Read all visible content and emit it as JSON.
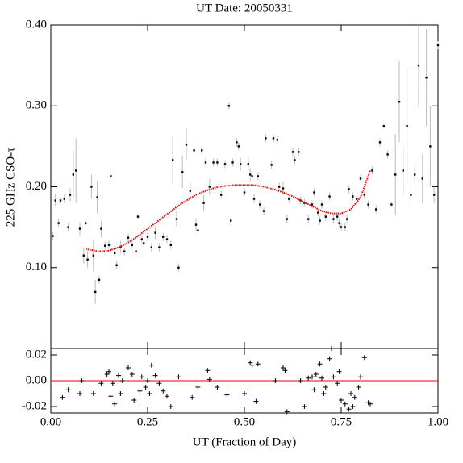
{
  "chart_data": [
    {
      "type": "scatter",
      "title": "UT Date: 20050331",
      "ylabel": "225 GHz CSO-τ",
      "xlim": [
        0,
        1
      ],
      "xticks": [
        0,
        0.25,
        0.5,
        0.75,
        1
      ],
      "ylim": [
        0,
        0.4
      ],
      "yticks": [
        {
          "value": 0.1,
          "label": "0.10"
        },
        {
          "value": 0.2,
          "label": "0.20"
        },
        {
          "value": 0.3,
          "label": "0.30"
        },
        {
          "value": 0.4,
          "label": "0.40"
        }
      ],
      "color": "#000000",
      "error_color": "#bbbbbb",
      "x": [
        0.005,
        0.012,
        0.02,
        0.025,
        0.035,
        0.045,
        0.05,
        0.058,
        0.065,
        0.075,
        0.085,
        0.09,
        0.095,
        0.105,
        0.11,
        0.115,
        0.12,
        0.125,
        0.13,
        0.14,
        0.15,
        0.155,
        0.165,
        0.17,
        0.18,
        0.19,
        0.2,
        0.21,
        0.22,
        0.225,
        0.235,
        0.24,
        0.25,
        0.26,
        0.27,
        0.28,
        0.29,
        0.3,
        0.31,
        0.315,
        0.325,
        0.33,
        0.34,
        0.35,
        0.36,
        0.37,
        0.375,
        0.38,
        0.39,
        0.395,
        0.4,
        0.41,
        0.42,
        0.43,
        0.44,
        0.45,
        0.46,
        0.465,
        0.47,
        0.48,
        0.485,
        0.49,
        0.5,
        0.51,
        0.515,
        0.52,
        0.525,
        0.535,
        0.54,
        0.55,
        0.555,
        0.57,
        0.575,
        0.585,
        0.59,
        0.6,
        0.61,
        0.615,
        0.625,
        0.63,
        0.64,
        0.645,
        0.655,
        0.665,
        0.675,
        0.68,
        0.69,
        0.695,
        0.7,
        0.71,
        0.72,
        0.73,
        0.74,
        0.745,
        0.75,
        0.76,
        0.765,
        0.77,
        0.78,
        0.79,
        0.8,
        0.81,
        0.82,
        0.83,
        0.84,
        0.85,
        0.86,
        0.87,
        0.88,
        0.89,
        0.9,
        0.91,
        0.92,
        0.93,
        0.94,
        0.95,
        0.96,
        0.97,
        0.98,
        0.99,
        1.0
      ],
      "values": [
        0.139,
        0.183,
        0.155,
        0.183,
        0.185,
        0.15,
        0.19,
        0.215,
        0.22,
        0.148,
        0.115,
        0.155,
        0.11,
        0.2,
        0.115,
        0.07,
        0.187,
        0.085,
        0.148,
        0.127,
        0.128,
        0.213,
        0.118,
        0.103,
        0.125,
        0.12,
        0.137,
        0.128,
        0.12,
        0.163,
        0.135,
        0.13,
        0.138,
        0.125,
        0.143,
        0.125,
        0.138,
        0.135,
        0.128,
        0.233,
        0.16,
        0.1,
        0.218,
        0.252,
        0.195,
        0.245,
        0.153,
        0.146,
        0.245,
        0.18,
        0.23,
        0.2,
        0.23,
        0.23,
        0.19,
        0.228,
        0.3,
        0.158,
        0.23,
        0.255,
        0.25,
        0.228,
        0.193,
        0.228,
        0.215,
        0.213,
        0.185,
        0.213,
        0.178,
        0.17,
        0.26,
        0.227,
        0.26,
        0.258,
        0.2,
        0.198,
        0.16,
        0.185,
        0.243,
        0.233,
        0.243,
        0.183,
        0.18,
        0.16,
        0.178,
        0.193,
        0.168,
        0.158,
        0.178,
        0.163,
        0.188,
        0.16,
        0.163,
        0.155,
        0.15,
        0.15,
        0.16,
        0.197,
        0.188,
        0.185,
        0.21,
        0.19,
        0.178,
        0.22,
        0.172,
        0.255,
        0.275,
        0.24,
        0.178,
        0.215,
        0.305,
        0.22,
        0.275,
        0.19,
        0.215,
        0.35,
        0.21,
        0.335,
        0.25,
        0.19,
        0.375
      ],
      "errors": [
        0.005,
        0.008,
        0.005,
        0.004,
        0.005,
        0.005,
        0.008,
        0.03,
        0.04,
        0.008,
        0.01,
        0.004,
        0.01,
        0.015,
        0.02,
        0.015,
        0.02,
        0.005,
        0.01,
        0.005,
        0.005,
        0.01,
        0.005,
        0.005,
        0.008,
        0.005,
        0.005,
        0.005,
        0.005,
        0.003,
        0.005,
        0.005,
        0.005,
        0.005,
        0.008,
        0.005,
        0.005,
        0.005,
        0.005,
        0.03,
        0.01,
        0.005,
        0.02,
        0.02,
        0.01,
        0.005,
        0.008,
        0.005,
        0.005,
        0.01,
        0.005,
        0.01,
        0.005,
        0.005,
        0.005,
        0.005,
        0.004,
        0.005,
        0.005,
        0.005,
        0.005,
        0.008,
        0.005,
        0.008,
        0.008,
        0.005,
        0.005,
        0.005,
        0.005,
        0.005,
        0.005,
        0.005,
        0.005,
        0.005,
        0.005,
        0.008,
        0.005,
        0.005,
        0.005,
        0.005,
        0.005,
        0.005,
        0.005,
        0.005,
        0.005,
        0.005,
        0.005,
        0.005,
        0.005,
        0.005,
        0.005,
        0.005,
        0.005,
        0.005,
        0.005,
        0.005,
        0.005,
        0.005,
        0.005,
        0.005,
        0.005,
        0.005,
        0.005,
        0.005,
        0.005,
        0.005,
        0.003,
        0.005,
        0.003,
        0.05,
        0.05,
        0.03,
        0.07,
        0.01,
        0.01,
        0.05,
        0.03,
        0.06,
        0.05,
        0.01,
        0.005
      ],
      "fit": {
        "color": "#ee0000",
        "x": [
          0.09,
          0.1,
          0.125,
          0.15,
          0.175,
          0.2,
          0.225,
          0.25,
          0.275,
          0.3,
          0.325,
          0.35,
          0.375,
          0.4,
          0.425,
          0.45,
          0.475,
          0.5,
          0.525,
          0.55,
          0.575,
          0.6,
          0.625,
          0.65,
          0.675,
          0.7,
          0.725,
          0.75,
          0.775,
          0.8,
          0.825
        ],
        "values": [
          0.123,
          0.122,
          0.12,
          0.121,
          0.125,
          0.131,
          0.139,
          0.148,
          0.157,
          0.166,
          0.175,
          0.183,
          0.19,
          0.195,
          0.199,
          0.201,
          0.202,
          0.202,
          0.202,
          0.2,
          0.197,
          0.193,
          0.188,
          0.182,
          0.176,
          0.17,
          0.167,
          0.167,
          0.172,
          0.187,
          0.22
        ]
      }
    },
    {
      "type": "residual",
      "xlabel": "UT (Fraction of Day)",
      "xlim": [
        0,
        1
      ],
      "xticks": [
        {
          "value": 0,
          "label": "0.00"
        },
        {
          "value": 0.25,
          "label": "0.25"
        },
        {
          "value": 0.5,
          "label": "0.50"
        },
        {
          "value": 0.75,
          "label": "0.75"
        },
        {
          "value": 1,
          "label": "1.00"
        }
      ],
      "ylim": [
        -0.025,
        0.025
      ],
      "yticks": [
        {
          "value": -0.02,
          "label": "-0.02"
        },
        {
          "value": 0,
          "label": "0.00"
        },
        {
          "value": 0.02,
          "label": "0.02"
        }
      ],
      "color": "#000000",
      "zero_line_color": "#ee0000",
      "x": [
        0.03,
        0.045,
        0.075,
        0.08,
        0.11,
        0.13,
        0.145,
        0.15,
        0.155,
        0.16,
        0.165,
        0.175,
        0.18,
        0.185,
        0.2,
        0.21,
        0.215,
        0.23,
        0.235,
        0.245,
        0.25,
        0.255,
        0.26,
        0.27,
        0.28,
        0.29,
        0.3,
        0.31,
        0.33,
        0.365,
        0.38,
        0.405,
        0.41,
        0.43,
        0.455,
        0.5,
        0.515,
        0.52,
        0.53,
        0.535,
        0.58,
        0.6,
        0.605,
        0.61,
        0.645,
        0.655,
        0.665,
        0.675,
        0.68,
        0.685,
        0.695,
        0.7,
        0.705,
        0.71,
        0.72,
        0.725,
        0.73,
        0.74,
        0.745,
        0.75,
        0.76,
        0.77,
        0.775,
        0.78,
        0.785,
        0.795,
        0.8,
        0.81,
        0.82,
        0.825
      ],
      "values": [
        -0.013,
        -0.007,
        -0.01,
        0.0,
        -0.01,
        -0.002,
        0.005,
        0.007,
        -0.012,
        -0.002,
        -0.018,
        0.004,
        -0.01,
        0.0,
        0.01,
        0.005,
        -0.015,
        -0.008,
        0.003,
        -0.005,
        0.0,
        -0.01,
        0.012,
        0.004,
        -0.002,
        -0.008,
        -0.012,
        -0.02,
        0.003,
        -0.013,
        -0.005,
        0.008,
        0.001,
        -0.005,
        -0.011,
        -0.01,
        0.014,
        0.012,
        -0.016,
        0.013,
        0.0,
        0.01,
        0.008,
        -0.024,
        0.0,
        -0.02,
        0.002,
        0.003,
        -0.007,
        0.005,
        0.013,
        0.002,
        -0.01,
        -0.005,
        0.017,
        0.025,
        0.003,
        -0.002,
        0.007,
        -0.015,
        -0.018,
        -0.022,
        -0.01,
        -0.02,
        -0.013,
        -0.005,
        0.003,
        0.018,
        -0.017,
        -0.018
      ]
    }
  ]
}
